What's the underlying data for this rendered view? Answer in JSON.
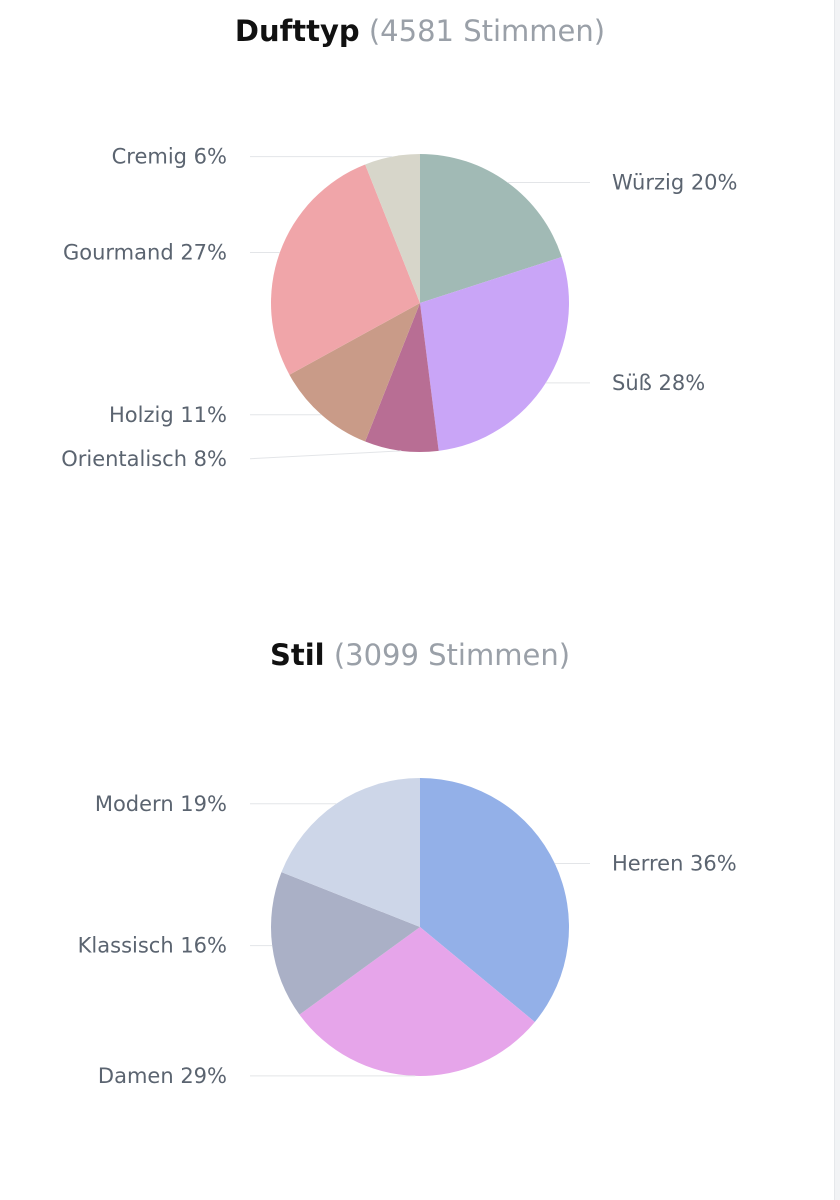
{
  "chart_data": [
    {
      "type": "pie",
      "title": "Dufttyp",
      "subtitle": "(4581 Stimmen)",
      "slices": [
        {
          "label": "Würzig",
          "value": 20,
          "display": "Würzig 20%",
          "color": "#a1bab5"
        },
        {
          "label": "Süß",
          "value": 28,
          "display": "Süß 28%",
          "color": "#c9a5f7"
        },
        {
          "label": "Orientalisch",
          "value": 8,
          "display": "Orientalisch 8%",
          "color": "#b86e94"
        },
        {
          "label": "Holzig",
          "value": 11,
          "display": "Holzig 11%",
          "color": "#c99b88"
        },
        {
          "label": "Gourmand",
          "value": 27,
          "display": "Gourmand 27%",
          "color": "#f0a5a9"
        },
        {
          "label": "Cremig",
          "value": 6,
          "display": "Cremig 6%",
          "color": "#d7d6ca"
        }
      ]
    },
    {
      "type": "pie",
      "title": "Stil",
      "subtitle": "(3099 Stimmen)",
      "slices": [
        {
          "label": "Herren",
          "value": 36,
          "display": "Herren 36%",
          "color": "#93b0e8"
        },
        {
          "label": "Damen",
          "value": 29,
          "display": "Damen 29%",
          "color": "#e6a5ea"
        },
        {
          "label": "Klassisch",
          "value": 16,
          "display": "Klassisch 16%",
          "color": "#aab0c6"
        },
        {
          "label": "Modern",
          "value": 19,
          "display": "Modern 19%",
          "color": "#cdd6e8"
        }
      ]
    }
  ]
}
